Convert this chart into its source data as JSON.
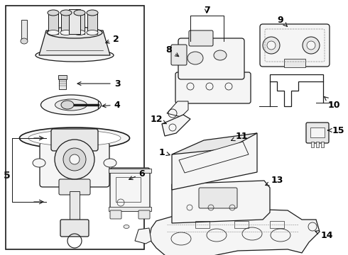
{
  "bg_color": "#ffffff",
  "line_color": "#1a1a1a",
  "label_color": "#000000",
  "lw": 0.9,
  "fontsize_label": 9,
  "fontsize_num": 9
}
